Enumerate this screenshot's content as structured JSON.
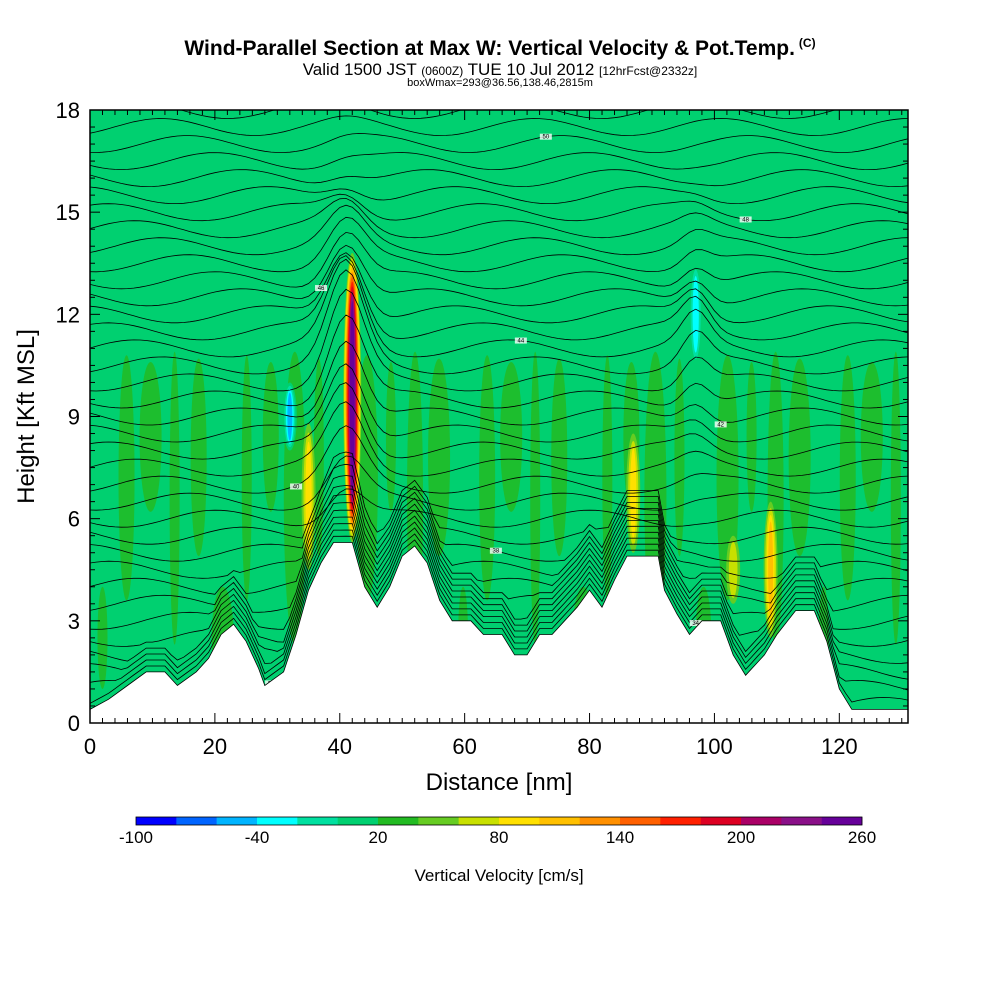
{
  "header": {
    "title_main": "Wind-Parallel Section at Max W: Vertical Velocity & Pot.Temp.",
    "title_mark": "(C)",
    "valid_a": "Valid 1500 JST",
    "valid_zone": "(0600Z)",
    "valid_b": "TUE 10 Jul 2012",
    "valid_fcst": "[12hrFcst@2332z]",
    "box_info": "boxWmax=293@36.56,138.46,2815m"
  },
  "chart_data": {
    "type": "heatmap",
    "xlabel": "Distance [nm]",
    "ylabel": "Height [Kft MSL]",
    "xlim": [
      0,
      131
    ],
    "ylim": [
      0,
      18
    ],
    "xticks": [
      "0",
      "20",
      "40",
      "60",
      "80",
      "100",
      "120"
    ],
    "yticks": [
      "0",
      "3",
      "6",
      "9",
      "12",
      "15",
      "18"
    ],
    "background_velocity_cms": [
      0,
      20
    ],
    "terrain_kft": [
      [
        0,
        0.4
      ],
      [
        3,
        0.7
      ],
      [
        6,
        1.1
      ],
      [
        9,
        1.5
      ],
      [
        12,
        1.5
      ],
      [
        14,
        1.1
      ],
      [
        17,
        1.5
      ],
      [
        19,
        1.9
      ],
      [
        21,
        2.6
      ],
      [
        23,
        2.9
      ],
      [
        25,
        2.4
      ],
      [
        27,
        1.6
      ],
      [
        28,
        1.1
      ],
      [
        31,
        1.5
      ],
      [
        33,
        2.6
      ],
      [
        35,
        3.9
      ],
      [
        37,
        4.7
      ],
      [
        39,
        5.3
      ],
      [
        42,
        5.3
      ],
      [
        44,
        4.0
      ],
      [
        46,
        3.4
      ],
      [
        48,
        4.0
      ],
      [
        50,
        4.9
      ],
      [
        52,
        5.2
      ],
      [
        54,
        4.7
      ],
      [
        56,
        3.6
      ],
      [
        58,
        3.0
      ],
      [
        61,
        3.0
      ],
      [
        63,
        2.6
      ],
      [
        66,
        2.6
      ],
      [
        68,
        2.0
      ],
      [
        70,
        2.0
      ],
      [
        72,
        2.6
      ],
      [
        74,
        2.6
      ],
      [
        76,
        3.0
      ],
      [
        78,
        3.4
      ],
      [
        80,
        3.9
      ],
      [
        82,
        3.4
      ],
      [
        84,
        4.2
      ],
      [
        86,
        4.9
      ],
      [
        91,
        4.9
      ],
      [
        92,
        3.9
      ],
      [
        94,
        3.2
      ],
      [
        96,
        2.6
      ],
      [
        98,
        3.0
      ],
      [
        101,
        3.0
      ],
      [
        103,
        2.0
      ],
      [
        105,
        1.4
      ],
      [
        108,
        2.0
      ],
      [
        110,
        2.6
      ],
      [
        113,
        3.3
      ],
      [
        116,
        3.3
      ],
      [
        118,
        2.4
      ],
      [
        120,
        1.0
      ],
      [
        122,
        0.4
      ],
      [
        131,
        0.4
      ]
    ],
    "velocity_features_cms": [
      {
        "x": 42,
        "z_range": [
          5.3,
          13.8
        ],
        "peak": 293
      },
      {
        "x": 35,
        "z_range": [
          4.5,
          8.8
        ],
        "peak": 95
      },
      {
        "x": 87,
        "z_range": [
          5.0,
          8.5
        ],
        "peak": 90
      },
      {
        "x": 109,
        "z_range": [
          2.5,
          6.5
        ],
        "peak": 100
      },
      {
        "x": 103,
        "z_range": [
          3.5,
          5.5
        ],
        "peak": 70
      },
      {
        "x": 32,
        "z_range": [
          8.0,
          10.0
        ],
        "peak": -70
      },
      {
        "x": 97,
        "z_range": [
          10.5,
          13.5
        ],
        "peak": -50
      }
    ],
    "isentrope_labels": [
      "30",
      "34",
      "38",
      "40",
      "42",
      "44",
      "46",
      "48",
      "50"
    ],
    "colorbar": {
      "label": "Vertical Velocity [cm/s]",
      "tick_labels": [
        "-100",
        "-40",
        "20",
        "80",
        "140",
        "200",
        "260"
      ],
      "colors": [
        "#0000ff",
        "#0064ff",
        "#00b4ff",
        "#00ffff",
        "#00e0a0",
        "#00d070",
        "#22bb22",
        "#66cc22",
        "#c8e000",
        "#ffe000",
        "#ffc000",
        "#ff9000",
        "#ff6000",
        "#ff2000",
        "#dd0022",
        "#aa0066",
        "#8a1088",
        "#660099"
      ]
    }
  }
}
